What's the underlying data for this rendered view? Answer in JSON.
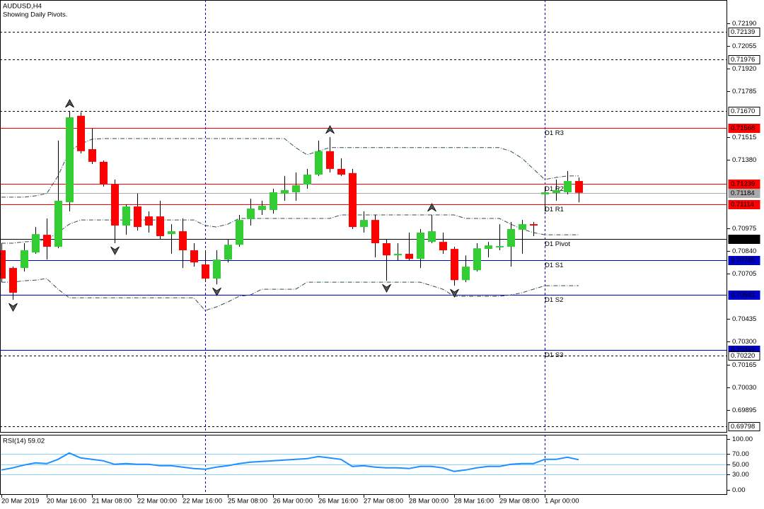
{
  "chart_data": [
    {
      "type": "candlestick",
      "title": "AUDUSD,H4",
      "subtitle": "Showing Daily Pivots.",
      "categories": [
        "20 Mar 2019",
        null,
        null,
        null,
        "20 Mar 16:00",
        null,
        null,
        null,
        "21 Mar 08:00",
        null,
        null,
        null,
        "22 Mar 00:00",
        null,
        null,
        null,
        "22 Mar 16:00",
        null,
        null,
        null,
        "25 Mar 08:00",
        null,
        null,
        null,
        "26 Mar 00:00",
        null,
        null,
        null,
        "26 Mar 16:00",
        null,
        null,
        null,
        "27 Mar 08:00",
        null,
        null,
        null,
        "28 Mar 00:00",
        null,
        null,
        null,
        "28 Mar 16:00",
        null,
        null,
        null,
        "29 Mar 08:00",
        null,
        null,
        null,
        "1 Apr 00:00",
        null,
        null,
        null
      ],
      "open": [
        0.70843,
        0.70738,
        0.70738,
        0.7083,
        0.70935,
        0.70864,
        0.71128,
        0.71641,
        0.71443,
        0.71368,
        0.71233,
        0.7099,
        0.71103,
        0.71044,
        0.71044,
        0.70939,
        0.70956,
        0.70843,
        0.70759,
        0.70675,
        0.70788,
        0.70876,
        0.71028,
        0.71082,
        0.71082,
        0.71179,
        0.71187,
        0.71233,
        0.71292,
        0.71431,
        0.71326,
        0.71301,
        0.70981,
        0.71023,
        0.70885,
        0.70813,
        0.70822,
        0.70792,
        0.70893,
        0.70893,
        0.70851,
        0.70666,
        0.70725,
        0.70851,
        0.7086,
        0.70864,
        0.70965,
        0.70998,
        0.71175,
        0.71183,
        0.71187,
        0.71254
      ],
      "high": [
        0.70885,
        0.70746,
        0.70885,
        0.70981,
        0.71032,
        0.71494,
        0.7167,
        0.71662,
        0.71565,
        0.71376,
        0.71263,
        0.71116,
        0.71179,
        0.71074,
        0.71137,
        0.70998,
        0.71032,
        0.70885,
        0.70843,
        0.70843,
        0.70906,
        0.71053,
        0.71149,
        0.71137,
        0.71208,
        0.71284,
        0.71305,
        0.71326,
        0.71494,
        0.71515,
        0.71389,
        0.71326,
        0.71074,
        0.71053,
        0.70906,
        0.70885,
        0.70948,
        0.70969,
        0.71053,
        0.70948,
        0.70864,
        0.70813,
        0.70885,
        0.70893,
        0.70998,
        0.71011,
        0.71023,
        0.71011,
        0.71221,
        0.71263,
        0.71313,
        0.71275
      ],
      "low": [
        0.70654,
        0.70549,
        0.70717,
        0.70822,
        0.70788,
        0.70855,
        0.71074,
        0.71418,
        0.71355,
        0.71221,
        0.70885,
        0.70935,
        0.7096,
        0.70948,
        0.70906,
        0.70822,
        0.70738,
        0.70746,
        0.70654,
        0.70641,
        0.70771,
        0.70864,
        0.7099,
        0.71053,
        0.71061,
        0.71137,
        0.71137,
        0.71208,
        0.71284,
        0.71305,
        0.71284,
        0.70969,
        0.70948,
        0.70801,
        0.70662,
        0.7078,
        0.7078,
        0.70738,
        0.70885,
        0.70822,
        0.70633,
        0.70654,
        0.70717,
        0.70801,
        0.70843,
        0.70746,
        0.70822,
        0.70927,
        0.71074,
        0.71137,
        0.71175,
        0.71128
      ],
      "close": [
        0.70675,
        0.70591,
        0.70843,
        0.70939,
        0.70864,
        0.71137,
        0.71632,
        0.71431,
        0.71368,
        0.71233,
        0.7099,
        0.71103,
        0.70981,
        0.7099,
        0.70927,
        0.70956,
        0.70843,
        0.70771,
        0.70675,
        0.70788,
        0.70876,
        0.71023,
        0.71091,
        0.71107,
        0.71187,
        0.712,
        0.71229,
        0.71292,
        0.71431,
        0.71326,
        0.71292,
        0.70981,
        0.71023,
        0.70885,
        0.70813,
        0.70822,
        0.70792,
        0.70948,
        0.70956,
        0.70843,
        0.70666,
        0.70746,
        0.70855,
        0.70872,
        0.70868,
        0.70969,
        0.70998,
        0.7099,
        0.71187,
        0.712,
        0.71254,
        0.71184
      ],
      "up_color": "#32cd32",
      "down_color": "#ff0000",
      "wick_color": "#000000",
      "ylim": [
        0.69761,
        0.72328
      ],
      "yticks": [
        {
          "value": 0.7219,
          "label": "0.72190"
        },
        {
          "value": 0.72055,
          "label": "0.72055"
        },
        {
          "value": 0.7192,
          "label": "0.71920"
        },
        {
          "value": 0.71785,
          "label": "0.71785"
        },
        {
          "value": 0.71515,
          "label": "0.71515"
        },
        {
          "value": 0.7138,
          "label": "0.71380"
        },
        {
          "value": 0.70975,
          "label": "0.70975"
        },
        {
          "value": 0.7084,
          "label": "0.70840"
        },
        {
          "value": 0.70705,
          "label": "0.70705"
        },
        {
          "value": 0.70435,
          "label": "0.70435"
        },
        {
          "value": 0.703,
          "label": "0.70300"
        },
        {
          "value": 0.70165,
          "label": "0.70165"
        },
        {
          "value": 0.7003,
          "label": "0.70030"
        },
        {
          "value": 0.69895,
          "label": "0.69895"
        }
      ],
      "bands": [
        {
          "color": "#2f4f4f",
          "values": [
            0.71158,
            0.71158,
            0.71158,
            0.71166,
            0.71179,
            0.71284,
            0.71431,
            0.71473,
            0.71502,
            0.71506,
            0.71506,
            0.71506,
            0.71506,
            0.71506,
            0.71506,
            0.71506,
            0.71506,
            0.71506,
            0.71506,
            0.71506,
            0.71506,
            0.71506,
            0.71506,
            0.71506,
            0.71506,
            0.71506,
            0.71452,
            0.7141,
            0.71431,
            0.71452,
            0.71452,
            0.71452,
            0.71452,
            0.71452,
            0.71452,
            0.71452,
            0.71452,
            0.71452,
            0.71452,
            0.71452,
            0.71452,
            0.71452,
            0.71452,
            0.71452,
            0.71452,
            0.71431,
            0.71389,
            0.71326,
            0.71263,
            0.71275,
            0.71284,
            0.71284
          ]
        },
        {
          "color": "#2f4f4f",
          "values": [
            0.70885,
            0.70885,
            0.70893,
            0.70897,
            0.70906,
            0.70948,
            0.70998,
            0.71023,
            0.71023,
            0.71023,
            0.71023,
            0.71023,
            0.71023,
            0.71023,
            0.71023,
            0.71023,
            0.71023,
            0.71023,
            0.7099,
            0.70981,
            0.70998,
            0.71032,
            0.71032,
            0.71032,
            0.71032,
            0.71032,
            0.71032,
            0.71032,
            0.71032,
            0.71032,
            0.71053,
            0.71053,
            0.71053,
            0.71053,
            0.71053,
            0.71053,
            0.71053,
            0.71053,
            0.71053,
            0.71053,
            0.71053,
            0.71032,
            0.71032,
            0.71032,
            0.71032,
            0.70998,
            0.70969,
            0.70948,
            0.70935,
            0.70935,
            0.70935,
            0.70935
          ]
        },
        {
          "color": "#2f4f4f",
          "values": [
            0.70654,
            0.70654,
            0.70662,
            0.70666,
            0.70675,
            0.70612,
            0.70561,
            0.70561,
            0.70561,
            0.70561,
            0.70561,
            0.70561,
            0.70561,
            0.70561,
            0.70561,
            0.70561,
            0.70561,
            0.70561,
            0.70486,
            0.70507,
            0.70536,
            0.7057,
            0.70578,
            0.70612,
            0.70612,
            0.70612,
            0.70612,
            0.70654,
            0.70654,
            0.70654,
            0.70654,
            0.70654,
            0.70654,
            0.70654,
            0.70654,
            0.70654,
            0.70654,
            0.70654,
            0.70633,
            0.70612,
            0.7057,
            0.7057,
            0.7057,
            0.7057,
            0.7057,
            0.70578,
            0.70591,
            0.70612,
            0.70633,
            0.70633,
            0.70633,
            0.70633
          ]
        }
      ],
      "levels": [
        {
          "value": 0.72139,
          "label": "0.72139",
          "color": "#000000",
          "style": "dashed"
        },
        {
          "value": 0.71976,
          "label": "0.71976",
          "color": "#000000",
          "style": "dashed"
        },
        {
          "value": 0.7167,
          "label": "0.71670",
          "color": "#000000",
          "style": "dashed"
        },
        {
          "value": 0.71568,
          "label": "0.71568",
          "name": "D1 R3",
          "color": "#ff0000",
          "style": "solid"
        },
        {
          "value": 0.71239,
          "label": "0.71239",
          "name": "D1 R2",
          "color": "#ff0000",
          "style": "solid"
        },
        {
          "value": 0.71114,
          "label": "0.71114",
          "name": "D1 R1",
          "color": "#ff0000",
          "style": "solid"
        },
        {
          "value": 0.7091,
          "label": "0.70910",
          "name": "D1 Pivot",
          "color": "#000000",
          "style": "solid"
        },
        {
          "value": 0.70785,
          "label": "0.70785",
          "name": "D1 S1",
          "color": "#0000cd",
          "style": "solid"
        },
        {
          "value": 0.70581,
          "label": "0.70581",
          "name": "D1 S2",
          "color": "#0000cd",
          "style": "solid"
        },
        {
          "value": 0.70252,
          "label": "0.70252",
          "name": "D1 S3",
          "color": "#0000cd",
          "style": "solid"
        },
        {
          "value": 0.7022,
          "label": "0.70220",
          "color": "#000000",
          "style": "dashed"
        },
        {
          "value": 0.69798,
          "label": "0.69798",
          "color": "#000000",
          "style": "dashed"
        }
      ],
      "current_price": {
        "value": 0.71184,
        "label": "0.71184",
        "color": "#a9a9a9"
      },
      "fractals": {
        "up": [
          6,
          29,
          38
        ],
        "down": [
          1,
          10,
          19,
          34,
          40
        ]
      },
      "separators": [
        18,
        48
      ]
    },
    {
      "type": "line",
      "title": "RSI(14) 59.02",
      "values": [
        38.9,
        43.1,
        48.6,
        52.8,
        51.4,
        59.7,
        72.2,
        62.5,
        59.7,
        56.9,
        50,
        51.4,
        50,
        50,
        47.2,
        47.2,
        44.4,
        41.7,
        40.3,
        44.4,
        47.2,
        51.4,
        54.2,
        55.6,
        56.9,
        58.3,
        59.7,
        61.1,
        65.3,
        62.5,
        59.7,
        45.8,
        47.2,
        44.4,
        43.1,
        43.1,
        41.7,
        45.8,
        45.8,
        43.1,
        36.1,
        38.9,
        43.1,
        45.8,
        45.8,
        50,
        51.4,
        51.4,
        59.7,
        59.7,
        63.9,
        59.02
      ],
      "color": "#1e90ff",
      "ylim": [
        -10,
        108
      ],
      "yticks": [
        {
          "value": 100,
          "label": "100.00"
        },
        {
          "value": 70,
          "label": "70.00"
        },
        {
          "value": 50,
          "label": "50.00"
        },
        {
          "value": 30,
          "label": "30.00"
        },
        {
          "value": 0,
          "label": "0.00"
        }
      ],
      "levels": [
        70,
        50,
        30
      ],
      "level_color": "#87cefa"
    }
  ]
}
